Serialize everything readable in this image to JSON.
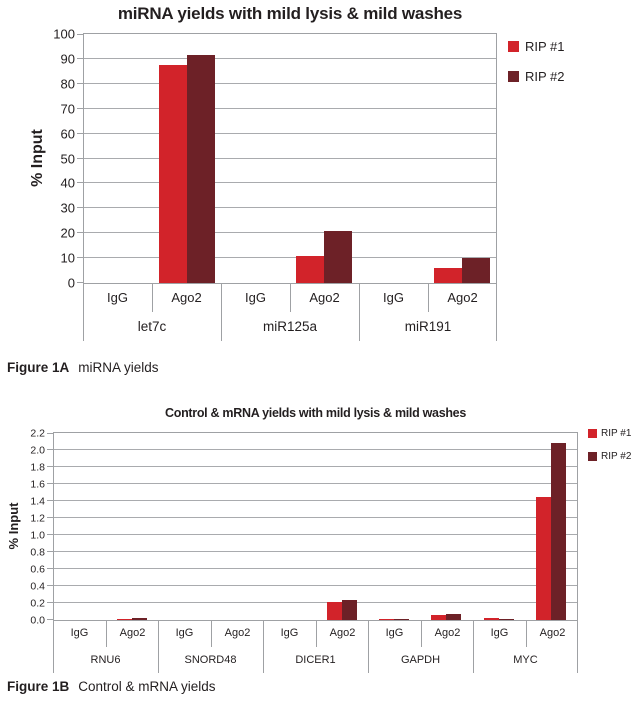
{
  "figure_a": {
    "caption_label": "Figure 1A",
    "caption_text": "miRNA yields"
  },
  "figure_b": {
    "caption_label": "Figure 1B",
    "caption_text": "Control & mRNA yields"
  },
  "colors": {
    "rip1": "#d2232a",
    "rip2": "#6d2127",
    "grid": "#a9abae",
    "axis": "#9fa1a4",
    "text": "#231f20"
  },
  "chart_data": [
    {
      "type": "bar",
      "title": "miRNA yields with mild lysis & mild washes",
      "xlabel": "",
      "ylabel": "% Input",
      "ylim": [
        0,
        100
      ],
      "ytick_step": 10,
      "ytick_decimals": 0,
      "grid": true,
      "legend_position": "right",
      "groups": [
        "let7c",
        "miR125a",
        "miR191"
      ],
      "subcategories": [
        "IgG",
        "Ago2"
      ],
      "series": [
        {
          "name": "RIP #1",
          "color": "#d2232a",
          "values": [
            [
              0,
              87.5
            ],
            [
              0,
              11
            ],
            [
              0,
              6
            ]
          ]
        },
        {
          "name": "RIP #2",
          "color": "#6d2127",
          "values": [
            [
              0,
              91.5
            ],
            [
              0,
              21
            ],
            [
              0,
              10
            ]
          ]
        }
      ]
    },
    {
      "type": "bar",
      "title": "Control & mRNA yields with mild lysis & mild washes",
      "xlabel": "",
      "ylabel": "% Input",
      "ylim": [
        0,
        2.2
      ],
      "ytick_step": 0.2,
      "ytick_decimals": 1,
      "grid": true,
      "legend_position": "right",
      "groups": [
        "RNU6",
        "SNORD48",
        "DICER1",
        "GAPDH",
        "MYC"
      ],
      "subcategories": [
        "IgG",
        "Ago2"
      ],
      "series": [
        {
          "name": "RIP #1",
          "color": "#d2232a",
          "values": [
            [
              0,
              0.01
            ],
            [
              0,
              0
            ],
            [
              0,
              0.21
            ],
            [
              0.01,
              0.06
            ],
            [
              0.02,
              1.45
            ]
          ]
        },
        {
          "name": "RIP #2",
          "color": "#6d2127",
          "values": [
            [
              0,
              0.02
            ],
            [
              0,
              0
            ],
            [
              0,
              0.24
            ],
            [
              0.01,
              0.07
            ],
            [
              0.01,
              2.08
            ]
          ]
        }
      ]
    }
  ]
}
